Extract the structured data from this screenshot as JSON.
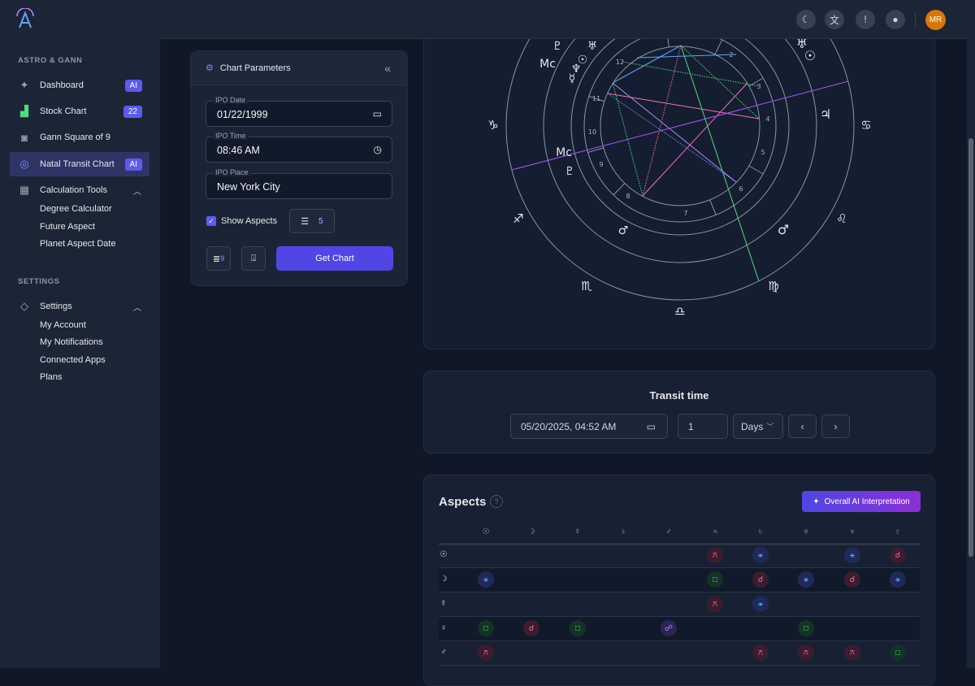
{
  "sidebar": {
    "section1": "ASTRO & GANN",
    "items": [
      {
        "label": "Dashboard",
        "badge": "AI",
        "icon": "sparkles-icon"
      },
      {
        "label": "Stock Chart",
        "badge": "22",
        "icon": "stock-chart-icon"
      },
      {
        "label": "Gann Square of 9",
        "icon": "gann-square-icon"
      },
      {
        "label": "Natal Transit Chart",
        "badge": "AI",
        "icon": "target-icon",
        "active": true
      },
      {
        "label": "Calculation Tools",
        "icon": "calculator-icon"
      }
    ],
    "calc_sub": [
      "Degree Calculator",
      "Future Aspect",
      "Planet Aspect Date"
    ],
    "section2": "SETTINGS",
    "settings": {
      "label": "Settings",
      "icon": "settings-diamond-icon"
    },
    "settings_sub": [
      "My Account",
      "My Notifications",
      "Connected Apps",
      "Plans"
    ]
  },
  "header": {
    "icons": [
      "moon-icon",
      "translate-icon",
      "alert-icon",
      "chat-icon"
    ],
    "avatar": "MR"
  },
  "params": {
    "title": "Chart Parameters",
    "ipo_date_label": "IPO Date",
    "ipo_date": "01/22/1999",
    "ipo_time_label": "IPO Time",
    "ipo_time": "08:46 AM",
    "ipo_place_label": "IPO Place",
    "ipo_place": "New York City",
    "show_aspects_label": "Show Aspects",
    "show_aspects": true,
    "filter_count": "5",
    "list_count": "9",
    "get_chart": "Get Chart"
  },
  "wheel": {
    "signs": [
      "♑",
      "♐",
      "♏",
      "♎",
      "♍",
      "♌",
      "♋"
    ],
    "houses": [
      "12",
      "2",
      "3",
      "4",
      "5",
      "6",
      "7",
      "8",
      "9",
      "10",
      "11"
    ],
    "natal_planets": [
      "♇",
      "♅",
      "Mc",
      "☉",
      "♆",
      "☿",
      "Mc",
      "♇",
      "♂"
    ],
    "transit_planets": [
      "♅",
      "☉",
      "♃",
      "♂"
    ]
  },
  "transit": {
    "title": "Transit time",
    "datetime": "05/20/2025, 04:52 AM",
    "step": "1",
    "unit": "Days"
  },
  "aspects": {
    "title": "Aspects",
    "ai_button": "Overall AI Interpretation",
    "columns": [
      "☉",
      "☽",
      "☿",
      "♀",
      "♂",
      "♃",
      "♄",
      "♅",
      "♆",
      "♇"
    ],
    "rows": [
      {
        "planet": "☉",
        "cells": {
          "5": "quincunx",
          "6": "sextile",
          "8": "sextile",
          "9": "conjunction"
        }
      },
      {
        "planet": "☽",
        "cells": {
          "0": "sextile",
          "5": "square",
          "6": "conjunction",
          "7": "sextile",
          "8": "conjunction",
          "9": "sextile"
        }
      },
      {
        "planet": "☿",
        "cells": {
          "5": "quincunx",
          "6": "sextile"
        }
      },
      {
        "planet": "♀",
        "cells": {
          "0": "square",
          "1": "conjunction",
          "2": "square",
          "4": "opposition",
          "7": "square"
        }
      },
      {
        "planet": "♂",
        "cells": {
          "0": "quincunx",
          "6": "quincunx",
          "7": "quincunx",
          "8": "quincunx",
          "9": "square"
        }
      }
    ],
    "glyphs": {
      "quincunx": "⚻",
      "sextile": "⚹",
      "conjunction": "☌",
      "square": "□",
      "opposition": "☍"
    },
    "colors": {
      "quincunx": [
        "#3b1d2e",
        "#f472b6"
      ],
      "sextile": [
        "#1e2a5a",
        "#60a5fa"
      ],
      "conjunction": [
        "#3b1d2e",
        "#f472b6"
      ],
      "square": [
        "#123326",
        "#4ade80"
      ],
      "opposition": [
        "#2c2555",
        "#a78bfa"
      ]
    }
  },
  "colors": {
    "accent": "#4f46e5",
    "avatar": "#d97706"
  }
}
